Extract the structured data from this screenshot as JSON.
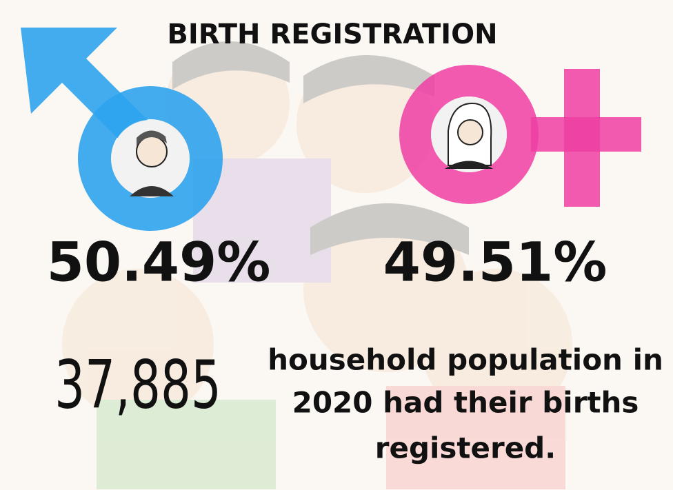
{
  "title": "BIRTH REGISTRATION",
  "male": {
    "percent": "50.49%"
  },
  "female": {
    "percent": "49.51%"
  },
  "stat": {
    "number": "37,885",
    "lines": [
      "household population in",
      "2020 had their births",
      "registered."
    ]
  }
}
